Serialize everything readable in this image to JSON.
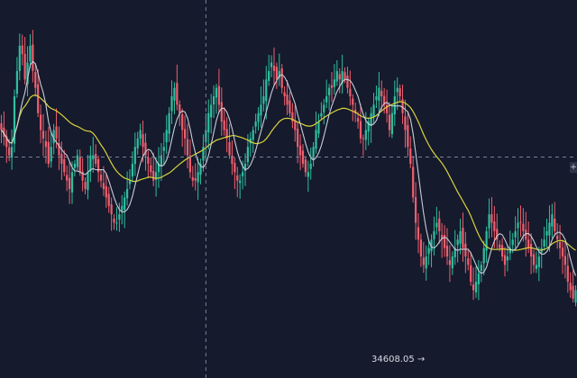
{
  "chart_data": {
    "type": "candlestick",
    "title": "",
    "xlabel": "",
    "ylabel": "",
    "y_range": [
      34300,
      36350
    ],
    "grid": false,
    "colors": {
      "background": "#151a2c",
      "up": "#2fbf9f",
      "down": "#ee5f6e",
      "ma_fast": "#c9cdd8",
      "ma_slow": "#d9d43c",
      "crosshair": "#7a8096"
    },
    "crosshair": {
      "x_index": 78,
      "y_value": 35440
    },
    "annotations": [
      {
        "text": "34608.05 →",
        "value": 34608.05
      }
    ],
    "crosshair_tag": "+",
    "close": [
      35600,
      35560,
      35500,
      35450,
      35500,
      35800,
      35950,
      36100,
      36050,
      35900,
      36000,
      36100,
      35950,
      35850,
      35700,
      35600,
      35550,
      35500,
      35400,
      35500,
      35600,
      35550,
      35450,
      35400,
      35350,
      35300,
      35250,
      35350,
      35400,
      35450,
      35350,
      35300,
      35250,
      35350,
      35450,
      35450,
      35400,
      35350,
      35300,
      35250,
      35200,
      35150,
      35100,
      35050,
      35050,
      35100,
      35150,
      35200,
      35250,
      35300,
      35400,
      35500,
      35550,
      35600,
      35500,
      35450,
      35400,
      35350,
      35300,
      35350,
      35400,
      35450,
      35500,
      35600,
      35700,
      35800,
      35850,
      35750,
      35700,
      35600,
      35550,
      35450,
      35350,
      35300,
      35300,
      35350,
      35400,
      35500,
      35600,
      35700,
      35750,
      35800,
      35850,
      35750,
      35650,
      35600,
      35550,
      35450,
      35400,
      35350,
      35300,
      35300,
      35350,
      35400,
      35500,
      35550,
      35600,
      35650,
      35700,
      35750,
      35800,
      35900,
      35950,
      36000,
      35950,
      35900,
      35950,
      35850,
      35800,
      35750,
      35700,
      35650,
      35600,
      35500,
      35450,
      35400,
      35350,
      35350,
      35400,
      35500,
      35600,
      35650,
      35700,
      35750,
      35800,
      35850,
      35850,
      35900,
      35950,
      35900,
      35950,
      35900,
      35850,
      35800,
      35750,
      35700,
      35650,
      35550,
      35550,
      35600,
      35650,
      35700,
      35750,
      35800,
      35850,
      35800,
      35750,
      35700,
      35600,
      35700,
      35800,
      35850,
      35800,
      35700,
      35600,
      35500,
      35400,
      35200,
      35050,
      34950,
      34850,
      34800,
      34850,
      34900,
      34950,
      35000,
      35050,
      35000,
      34950,
      34900,
      34850,
      34800,
      34850,
      34900,
      34950,
      35000,
      34900,
      34850,
      34800,
      34700,
      34650,
      34700,
      34750,
      34800,
      34900,
      35000,
      35100,
      35050,
      35000,
      34950,
      34900,
      34850,
      34800,
      34850,
      34900,
      34950,
      35000,
      35050,
      35050,
      35000,
      34950,
      34900,
      34850,
      34800,
      34800,
      34850,
      34900,
      34950,
      35000,
      35050,
      35100,
      35000,
      34950,
      34900,
      34850,
      34800,
      34700,
      34650,
      34600,
      34650
    ]
  }
}
